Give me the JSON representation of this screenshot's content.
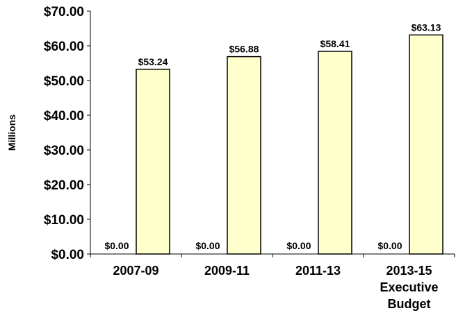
{
  "chart_data": {
    "type": "bar",
    "title": "",
    "xlabel": "",
    "ylabel": "Millions",
    "categories": [
      [
        "2007-09"
      ],
      [
        "2009-11"
      ],
      [
        "2011-13"
      ],
      [
        "2013-15",
        "Executive",
        "Budget"
      ]
    ],
    "series": [
      {
        "values": [
          0.0,
          0.0,
          0.0,
          0.0
        ],
        "labels": [
          "$0.00",
          "$0.00",
          "$0.00",
          "$0.00"
        ],
        "color": "#FFFFCC"
      },
      {
        "values": [
          53.24,
          56.88,
          58.41,
          63.13
        ],
        "labels": [
          "$53.24",
          "$56.88",
          "$58.41",
          "$63.13"
        ],
        "color": "#FFFFCC"
      }
    ],
    "ylim": [
      0,
      70
    ],
    "yticks": [
      0,
      10,
      20,
      30,
      40,
      50,
      60,
      70
    ],
    "ytick_labels": [
      "$0.00",
      "$10.00",
      "$20.00",
      "$30.00",
      "$40.00",
      "$50.00",
      "$60.00",
      "$70.00"
    ],
    "grid": false,
    "legend": "none",
    "bar_outline_color": "#000000",
    "axis_color": "#000000"
  }
}
